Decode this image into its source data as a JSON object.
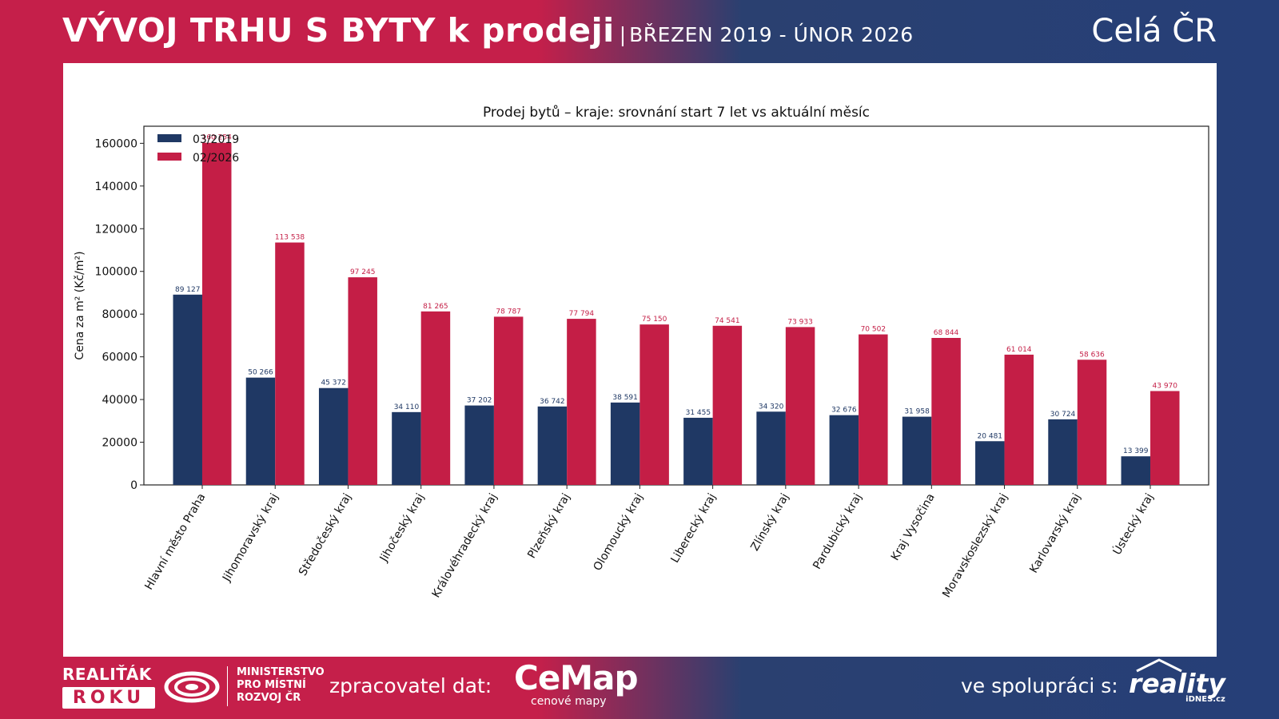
{
  "header": {
    "title": "VÝVOJ TRHU S BYTY k prodeji",
    "separator": "|",
    "subtitle": "BŘEZEN 2019 - ÚNOR 2026",
    "region": "Celá ČR"
  },
  "footer": {
    "realitak_top": "REALIŤÁK",
    "realitak_badge": "ROKU",
    "mmr_line1": "MINISTERSTVO",
    "mmr_line2": "PRO MÍSTNÍ",
    "mmr_line3": "ROZVOJ ČR",
    "processor_label": "zpracovatel dat:",
    "cemap_brand": "CeMap",
    "cemap_sub": "cenové mapy",
    "partner_label": "ve spolupráci s:",
    "reality_brand": "reality",
    "reality_sub": "iDNES.cz"
  },
  "colors": {
    "series_2019": "#1f3864",
    "series_2026": "#c41e46",
    "brand_red": "#c51f4a",
    "brand_blue": "#263f78"
  },
  "chart_data": {
    "type": "bar",
    "title": "Prodej bytů – kraje: srovnání start 7 let vs aktuální měsíc",
    "xlabel": "",
    "ylabel": "Cena za m² (Kč/m²)",
    "ylim": [
      0,
      168000
    ],
    "yticks": [
      0,
      20000,
      40000,
      60000,
      80000,
      100000,
      120000,
      140000,
      160000
    ],
    "grid": false,
    "legend_position": "top-left",
    "categories": [
      "Hlavní město Praha",
      "Jihomoravský kraj",
      "Středočeský kraj",
      "Jihočeský kraj",
      "Královéhradecký kraj",
      "Plzeňský kraj",
      "Olomoucký kraj",
      "Liberecký kraj",
      "Zlínský kraj",
      "Pardubický kraj",
      "Kraj Vysočina",
      "Moravskoslezský kraj",
      "Karlovarský kraj",
      "Ústecký kraj"
    ],
    "series": [
      {
        "name": "03/2019",
        "values": [
          89127,
          50266,
          45372,
          34110,
          37202,
          36742,
          38591,
          31455,
          34320,
          32676,
          31958,
          20481,
          30724,
          13399
        ],
        "labels": [
          "89 127",
          "50 266",
          "45 372",
          "34 110",
          "37 202",
          "36 742",
          "38 591",
          "31 455",
          "34 320",
          "32 676",
          "31 958",
          "20 481",
          "30 724",
          "13 399"
        ]
      },
      {
        "name": "02/2026",
        "values": [
          160254,
          113538,
          97245,
          81265,
          78787,
          77794,
          75150,
          74541,
          73933,
          70502,
          68844,
          61014,
          58636,
          43970
        ],
        "labels": [
          "160 254",
          "113 538",
          "97 245",
          "81 265",
          "78 787",
          "77 794",
          "75 150",
          "74 541",
          "73 933",
          "70 502",
          "68 844",
          "61 014",
          "58 636",
          "43 970"
        ]
      }
    ]
  }
}
